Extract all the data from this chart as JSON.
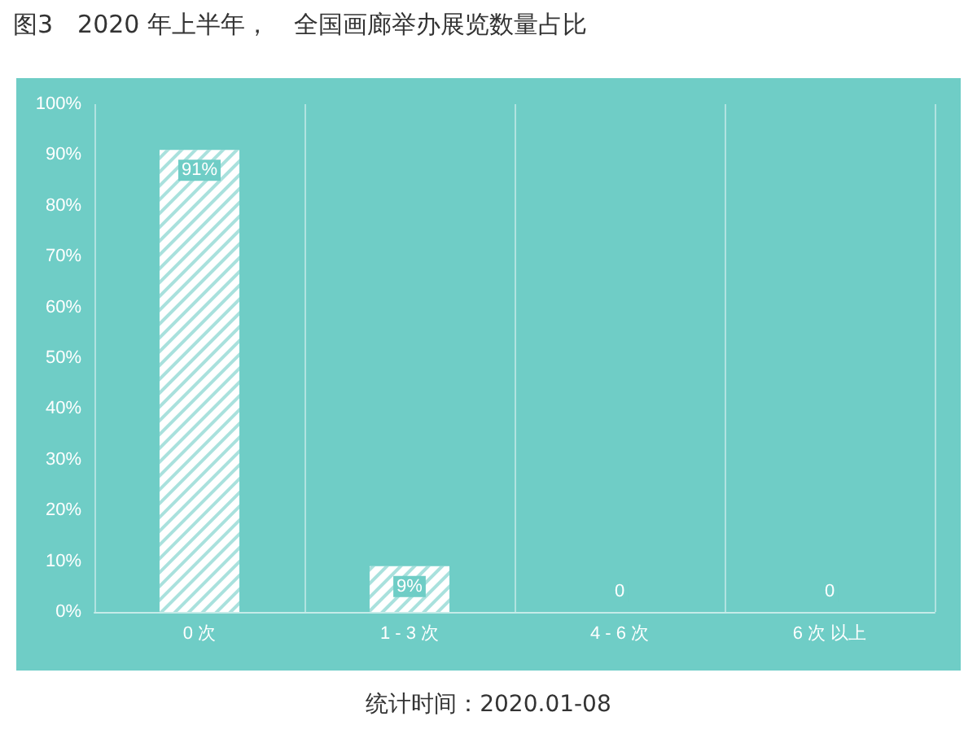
{
  "chart_data": {
    "type": "bar",
    "title": "图3　2020 年上半年，　全国画廊举办展览数量占比",
    "categories": [
      "0 次",
      "1 - 3 次",
      "4 - 6 次",
      "6 次 以上"
    ],
    "values": [
      91,
      9,
      0,
      0
    ],
    "value_labels": [
      "91%",
      "9%",
      "0",
      "0"
    ],
    "color": "#ffffff",
    "ylim": [
      0,
      100
    ],
    "yticks": [
      {
        "value": 0,
        "label": "0%"
      },
      {
        "value": 10,
        "label": "10%"
      },
      {
        "value": 20,
        "label": "20%"
      },
      {
        "value": 30,
        "label": "30%"
      },
      {
        "value": 40,
        "label": "40%"
      },
      {
        "value": 50,
        "label": "50%"
      },
      {
        "value": 60,
        "label": "60%"
      },
      {
        "value": 70,
        "label": "70%"
      },
      {
        "value": 80,
        "label": "80%"
      },
      {
        "value": 90,
        "label": "90%"
      },
      {
        "value": 100,
        "label": "100%"
      }
    ],
    "grid": "x",
    "annotations": [
      "统计时间：2020.01-08"
    ]
  }
}
